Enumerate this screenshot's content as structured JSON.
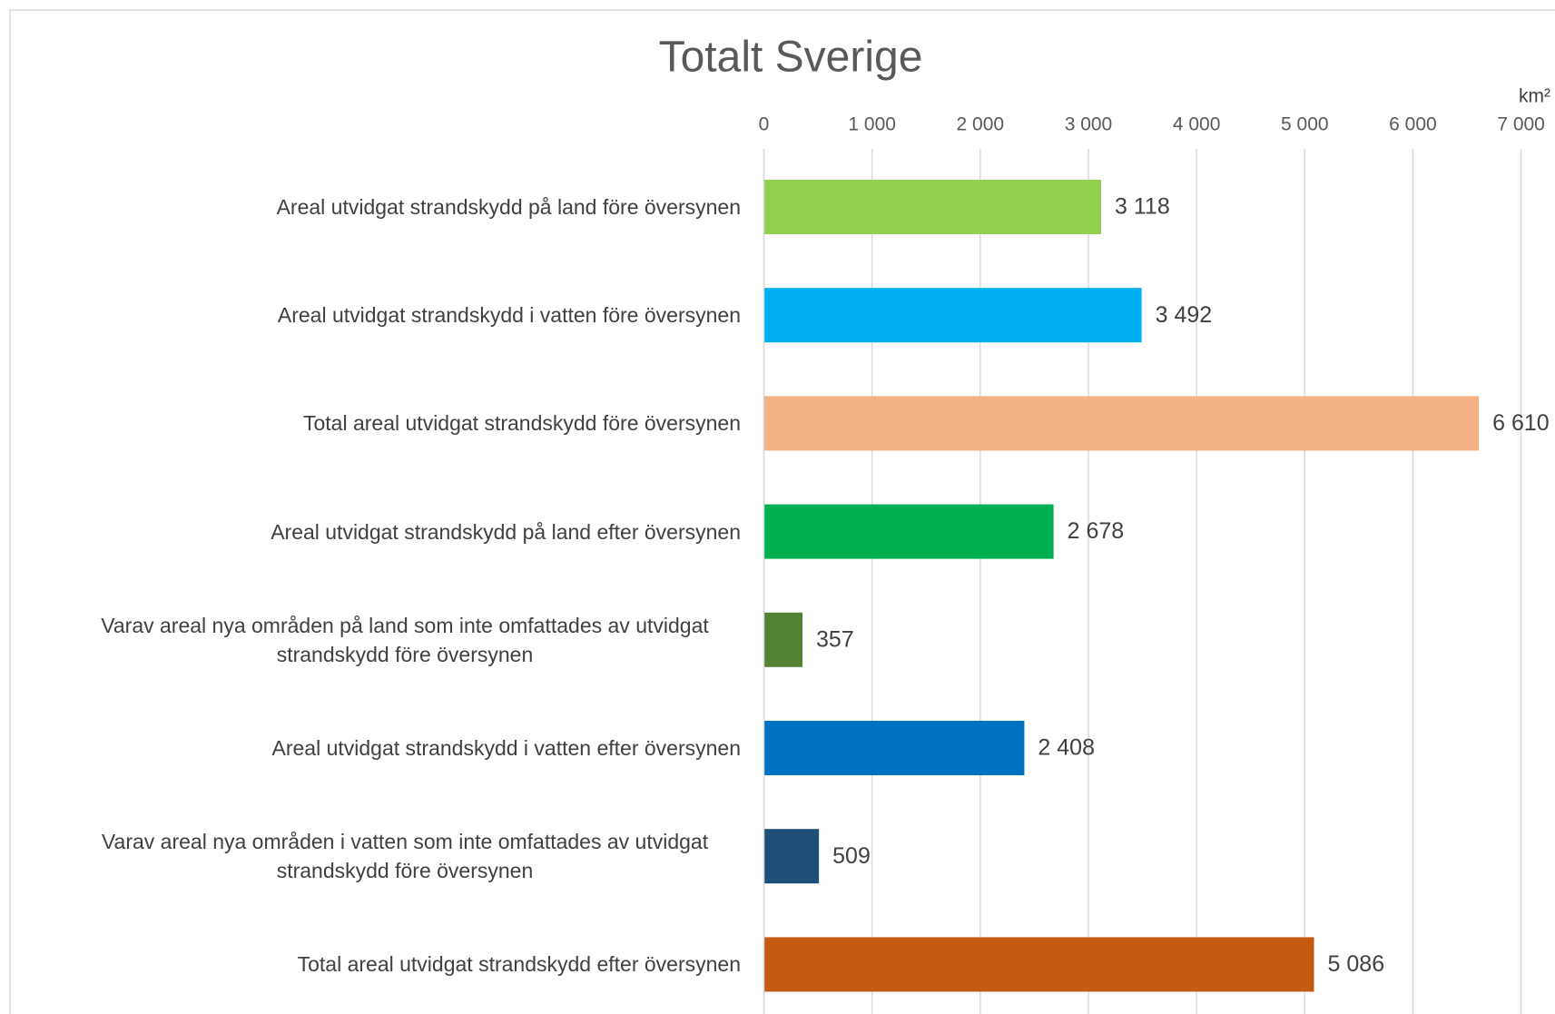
{
  "chart_data": {
    "type": "barh",
    "title": "Totalt Sverige",
    "unit": "km²",
    "categories": [
      "Areal utvidgat strandskydd på land före översynen",
      "Areal utvidgat strandskydd i vatten före översynen",
      "Total areal utvidgat strandskydd före översynen",
      "Areal utvidgat strandskydd på land efter översynen",
      "Varav areal nya områden på land som inte omfattades av utvidgat strandskydd före översynen",
      "Areal utvidgat strandskydd i vatten efter översynen",
      "Varav areal nya områden i vatten som inte omfattades av utvidgat strandskydd före översynen",
      "Total areal utvidgat strandskydd efter översynen"
    ],
    "values": [
      3118,
      3492,
      6610,
      2678,
      357,
      2408,
      509,
      5086
    ],
    "value_labels": [
      "3 118",
      "3 492",
      "6 610",
      "2 678",
      "357",
      "2 408",
      "509",
      "5 086"
    ],
    "colors": [
      "#92d050",
      "#00b0f0",
      "#f4b183",
      "#00b050",
      "#548235",
      "#0070c0",
      "#1f4e79",
      "#c55a11"
    ],
    "xlim": [
      0,
      7000
    ],
    "xticks": [
      0,
      {
        "value": 1000,
        "label": "1 000"
      },
      {
        "value": 2000,
        "label": "2 000"
      },
      {
        "value": 3000,
        "label": "3 000"
      },
      {
        "value": 4000,
        "label": "4 000"
      },
      {
        "value": 5000,
        "label": "5 000"
      },
      {
        "value": 6000,
        "label": "6 000"
      },
      {
        "value": 7000,
        "label": "7 000"
      }
    ],
    "grid": true
  }
}
